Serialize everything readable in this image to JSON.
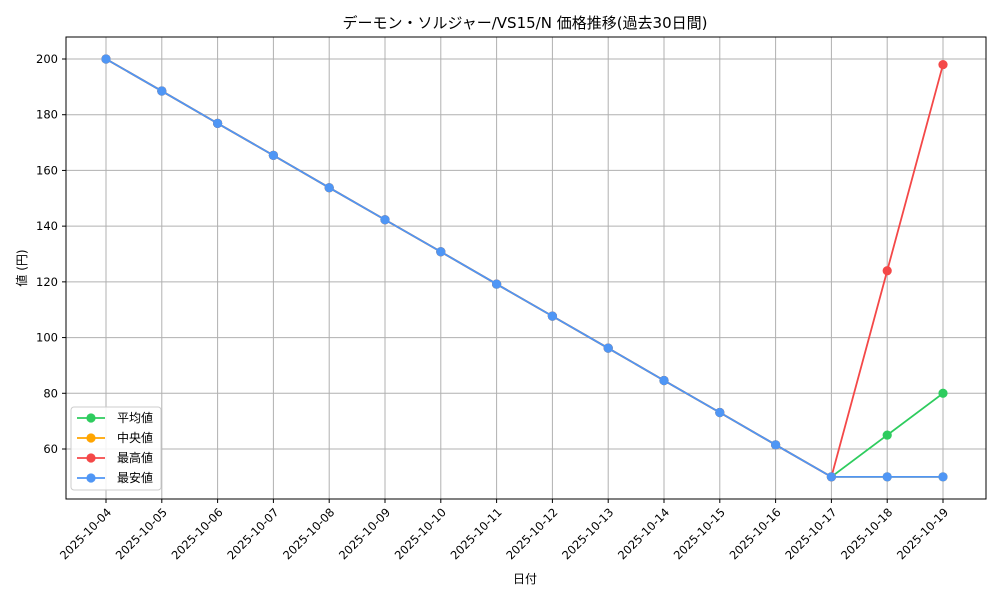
{
  "chart_data": {
    "type": "line",
    "title": "デーモン・ソルジャー/VS15/N 価格推移(過去30日間)",
    "xlabel": "日付",
    "ylabel": "値 (円)",
    "x": [
      "2025-10-04",
      "2025-10-05",
      "2025-10-06",
      "2025-10-07",
      "2025-10-08",
      "2025-10-09",
      "2025-10-10",
      "2025-10-11",
      "2025-10-12",
      "2025-10-13",
      "2025-10-14",
      "2025-10-15",
      "2025-10-16",
      "2025-10-17",
      "2025-10-18",
      "2025-10-19"
    ],
    "yticks": [
      60,
      80,
      100,
      120,
      140,
      160,
      180,
      200
    ],
    "ylim": [
      42.5,
      207.5
    ],
    "grid": true,
    "legend_position": "lower left",
    "series": [
      {
        "name": "平均値",
        "color": "#2ecc5e",
        "values": [
          200,
          188.5,
          176.9,
          165.4,
          153.8,
          142.3,
          130.8,
          119.2,
          107.7,
          96.2,
          84.6,
          73.1,
          61.5,
          50,
          65,
          80
        ]
      },
      {
        "name": "中央値",
        "color": "#ffa500",
        "values": [
          200,
          188.5,
          176.9,
          165.4,
          153.8,
          142.3,
          130.8,
          119.2,
          107.7,
          96.2,
          84.6,
          73.1,
          61.5,
          50,
          50,
          50
        ]
      },
      {
        "name": "最高値",
        "color": "#f44848",
        "values": [
          200,
          188.5,
          176.9,
          165.4,
          153.8,
          142.3,
          130.8,
          119.2,
          107.7,
          96.2,
          84.6,
          73.1,
          61.5,
          50,
          124,
          198
        ]
      },
      {
        "name": "最安値",
        "color": "#4f96f5",
        "values": [
          200,
          188.5,
          176.9,
          165.4,
          153.8,
          142.3,
          130.8,
          119.2,
          107.7,
          96.2,
          84.6,
          73.1,
          61.5,
          50,
          50,
          50
        ]
      }
    ]
  }
}
